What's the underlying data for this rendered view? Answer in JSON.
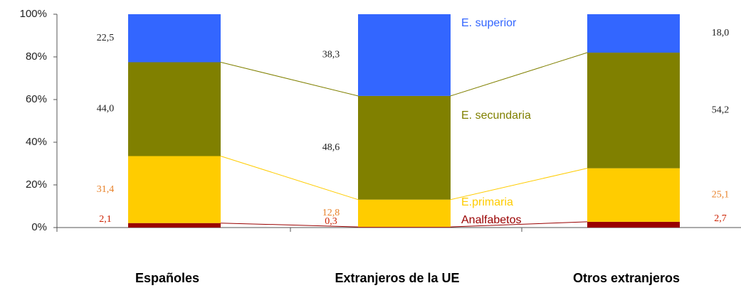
{
  "chart_data": {
    "type": "stacked_bar",
    "categories": [
      "Españoles",
      "Extranjeros de la UE",
      "Otros extranjeros"
    ],
    "series": [
      {
        "name": "Analfabetos",
        "color": "#990000",
        "label_color": "#cc2200",
        "values": [
          2.1,
          0.3,
          2.7
        ],
        "value_labels": [
          "2,1",
          "0,3",
          "2,7"
        ]
      },
      {
        "name": "E.primaria",
        "color": "#ffcc00",
        "label_color": "#e8822a",
        "values": [
          31.4,
          12.8,
          25.1
        ],
        "value_labels": [
          "31,4",
          "12,8",
          "25,1"
        ]
      },
      {
        "name": "E. secundaria",
        "color": "#808000",
        "label_color": "#222222",
        "values": [
          44.0,
          48.6,
          54.2
        ],
        "value_labels": [
          "44,0",
          "48,6",
          "54,2"
        ]
      },
      {
        "name": "E. superior",
        "color": "#3366ff",
        "label_color": "#222222",
        "values": [
          22.5,
          38.3,
          18.0
        ],
        "value_labels": [
          "22,5",
          "38,3",
          "18,0"
        ]
      }
    ],
    "ylim": [
      0,
      100
    ],
    "yticks": [
      {
        "value": 0,
        "label": "0%"
      },
      {
        "value": 20,
        "label": "20%"
      },
      {
        "value": 40,
        "label": "40%"
      },
      {
        "value": 60,
        "label": "60%"
      },
      {
        "value": 80,
        "label": "80%"
      },
      {
        "value": 100,
        "label": "100%"
      }
    ]
  }
}
